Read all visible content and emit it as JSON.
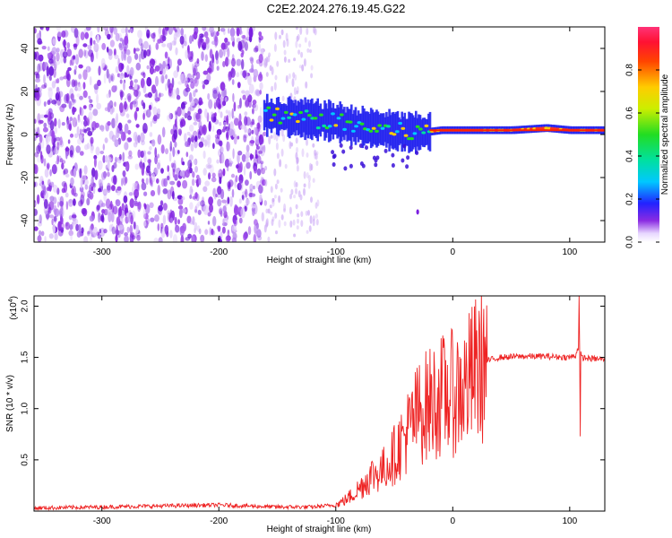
{
  "title": "C2E2.2024.276.19.45.G22",
  "chart_data": [
    {
      "type": "heatmap",
      "xlabel": "Height of straight line (km)",
      "ylabel": "Frequency (Hz)",
      "xlim": [
        -358,
        130
      ],
      "ylim": [
        -50,
        50
      ],
      "xticks": [
        -300,
        -200,
        -100,
        0,
        100
      ],
      "xtick_labels": [
        "-300",
        "-200",
        "-100",
        "0",
        "100"
      ],
      "yticks": [
        -40,
        -20,
        0,
        20,
        40
      ],
      "ytick_labels": [
        "-40",
        "-20",
        "0",
        "20",
        "40"
      ],
      "colorbar": {
        "label": "Normalized spectral amplitude",
        "range": [
          0,
          1
        ],
        "ticks": [
          0.0,
          0.2,
          0.4,
          0.6,
          0.8
        ],
        "tick_labels": [
          "0.0",
          "0.2",
          "0.4",
          "0.6",
          "0.8"
        ]
      },
      "signal_trace": [
        {
          "x": -162,
          "f": 9
        },
        {
          "x": -140,
          "f": 8
        },
        {
          "x": -120,
          "f": 7
        },
        {
          "x": -100,
          "f": 6
        },
        {
          "x": -85,
          "f": 4
        },
        {
          "x": -70,
          "f": 3
        },
        {
          "x": -55,
          "f": 2
        },
        {
          "x": -40,
          "f": 1
        },
        {
          "x": -25,
          "f": 1
        },
        {
          "x": -10,
          "f": 2
        },
        {
          "x": 0,
          "f": 2
        },
        {
          "x": 20,
          "f": 2
        },
        {
          "x": 50,
          "f": 2
        },
        {
          "x": 80,
          "f": 3
        },
        {
          "x": 100,
          "f": 2
        },
        {
          "x": 130,
          "f": 2
        }
      ],
      "noise_region": {
        "x_start": -358,
        "x_end": -160,
        "sparse_end": -115
      },
      "grid": false
    },
    {
      "type": "line",
      "xlabel": "Height of straight line (km)",
      "ylabel": "SNR (10 * v/v)",
      "y_scale_label": "(x10",
      "y_scale_exponent": "4",
      "xlim": [
        -358,
        130
      ],
      "ylim": [
        0,
        2.1
      ],
      "xticks": [
        -300,
        -200,
        -100,
        0,
        100
      ],
      "xtick_labels": [
        "-300",
        "-200",
        "-100",
        "0",
        "100"
      ],
      "yticks": [
        0.5,
        1.0,
        1.5,
        2.0
      ],
      "ytick_labels": [
        "0.5",
        "1.0",
        "1.5",
        "2.0"
      ],
      "series": [
        {
          "color": "#ee2222",
          "points": [
            [
              -358,
              0.03
            ],
            [
              -300,
              0.04
            ],
            [
              -250,
              0.05
            ],
            [
              -200,
              0.06
            ],
            [
              -150,
              0.04
            ],
            [
              -120,
              0.04
            ],
            [
              -100,
              0.06
            ],
            [
              -90,
              0.12
            ],
            [
              -80,
              0.22
            ],
            [
              -70,
              0.35
            ],
            [
              -60,
              0.4
            ],
            [
              -50,
              0.55
            ],
            [
              -40,
              0.75
            ],
            [
              -30,
              0.95
            ],
            [
              -20,
              1.05
            ],
            [
              -10,
              1.12
            ],
            [
              0,
              1.15
            ],
            [
              10,
              1.2
            ],
            [
              20,
              1.38
            ],
            [
              30,
              1.47
            ],
            [
              40,
              1.5
            ],
            [
              60,
              1.51
            ],
            [
              80,
              1.51
            ],
            [
              100,
              1.5
            ],
            [
              105,
              1.52
            ],
            [
              108,
              1.62
            ],
            [
              110,
              1.5
            ],
            [
              115,
              1.49
            ],
            [
              130,
              1.48
            ]
          ],
          "spike": {
            "x": 108,
            "max": 2.1,
            "min": 0.73
          }
        }
      ],
      "grid": false
    }
  ]
}
